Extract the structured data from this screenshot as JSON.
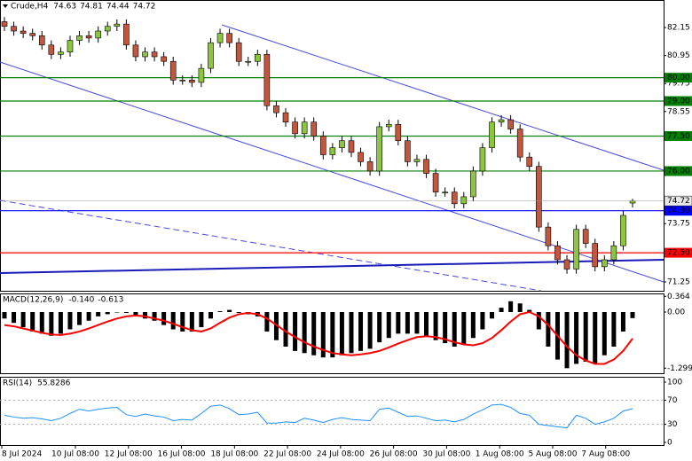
{
  "chart_data": [
    {
      "type": "candlestick",
      "title": "Crude,H4",
      "header_values": [
        74.63,
        74.81,
        74.44,
        74.72
      ],
      "up_color": "#8cc63f",
      "down_color": "#c0573e",
      "open": [
        82.4,
        82.2,
        82.0,
        81.9,
        81.8,
        81.4,
        81.0,
        81.1,
        81.6,
        81.8,
        81.7,
        82.0,
        82.2,
        82.3,
        81.4,
        80.9,
        81.1,
        80.9,
        80.7,
        79.9,
        79.9,
        79.8,
        80.4,
        81.5,
        81.9,
        81.5,
        80.7,
        80.7,
        81.0,
        78.8,
        78.5,
        78.1,
        77.6,
        78.1,
        77.5,
        76.7,
        77.0,
        77.3,
        76.8,
        76.4,
        76.0,
        77.9,
        78.0,
        77.3,
        76.4,
        76.5,
        75.9,
        75.1,
        75.1,
        74.6,
        74.9,
        76.0,
        77.0,
        78.1,
        78.2,
        77.8,
        76.6,
        76.2,
        73.6,
        72.8,
        72.2,
        71.8,
        73.5,
        72.9,
        71.9,
        72.2,
        72.8,
        74.63
      ],
      "high": [
        82.6,
        82.4,
        82.2,
        82.1,
        82.0,
        81.6,
        81.3,
        81.8,
        82.0,
        82.0,
        82.2,
        82.4,
        82.5,
        82.5,
        81.6,
        81.3,
        81.3,
        81.1,
        80.9,
        80.1,
        80.1,
        80.6,
        81.7,
        82.1,
        82.1,
        81.7,
        80.9,
        81.2,
        81.2,
        79.0,
        78.7,
        78.3,
        78.3,
        78.3,
        77.7,
        77.2,
        77.5,
        77.5,
        77.0,
        76.6,
        78.1,
        78.2,
        78.2,
        77.5,
        76.7,
        76.7,
        76.1,
        75.3,
        75.3,
        75.1,
        76.2,
        77.2,
        78.3,
        78.4,
        78.4,
        78.0,
        76.8,
        76.4,
        73.8,
        73.0,
        72.4,
        73.7,
        73.7,
        73.1,
        72.4,
        73.0,
        74.3,
        74.81
      ],
      "low": [
        82.0,
        81.8,
        81.7,
        81.6,
        81.2,
        80.8,
        80.8,
        80.9,
        81.4,
        81.5,
        81.5,
        81.8,
        82.0,
        81.2,
        80.7,
        80.7,
        80.7,
        80.5,
        79.7,
        79.7,
        79.6,
        79.6,
        80.2,
        81.3,
        81.3,
        80.5,
        80.5,
        80.5,
        78.6,
        78.3,
        77.9,
        77.4,
        77.4,
        77.3,
        76.5,
        76.5,
        76.8,
        76.6,
        76.2,
        75.8,
        75.8,
        77.7,
        77.1,
        76.2,
        76.2,
        75.7,
        74.9,
        74.9,
        74.4,
        74.4,
        74.7,
        75.8,
        76.8,
        77.9,
        77.6,
        76.4,
        76.0,
        73.4,
        72.6,
        72.0,
        71.6,
        71.6,
        72.7,
        71.7,
        71.7,
        72.0,
        72.6,
        74.44
      ],
      "close": [
        82.2,
        82.0,
        81.9,
        81.8,
        81.4,
        81.0,
        81.1,
        81.6,
        81.8,
        81.7,
        82.0,
        82.2,
        82.3,
        81.4,
        80.9,
        81.1,
        80.9,
        80.7,
        79.9,
        79.9,
        79.8,
        80.4,
        81.5,
        81.9,
        81.5,
        80.7,
        80.7,
        81.0,
        78.8,
        78.5,
        78.1,
        77.6,
        78.1,
        77.5,
        76.7,
        77.0,
        77.3,
        76.8,
        76.4,
        76.0,
        77.9,
        78.0,
        77.3,
        76.4,
        76.5,
        75.9,
        75.1,
        75.1,
        74.6,
        74.9,
        76.0,
        77.0,
        78.1,
        78.2,
        77.8,
        76.6,
        76.2,
        73.6,
        72.8,
        72.2,
        71.8,
        73.5,
        72.9,
        71.9,
        72.2,
        72.8,
        74.1,
        74.72
      ],
      "ylim": [
        70.87,
        83.33
      ],
      "yticks": [
        82.15,
        80.95,
        79.75,
        78.55,
        73.75,
        71.25
      ],
      "levels": [
        {
          "value": 80,
          "label": "80.00",
          "color": "#008000"
        },
        {
          "value": 79,
          "label": "79.00",
          "color": "#008000"
        },
        {
          "value": 77.5,
          "label": "77.50",
          "color": "#008000"
        },
        {
          "value": 76,
          "label": "76.00",
          "color": "#008000"
        },
        {
          "value": 74.3,
          "label": "74.30",
          "color": "#0000ff"
        },
        {
          "value": 72.5,
          "label": "72.50",
          "color": "#ff0000"
        }
      ],
      "last_price": 74.72
    },
    {
      "type": "macd",
      "title": "MACD(12,26,9)",
      "header_values": [
        {
          "value": -0.14,
          "label": "-0.140"
        },
        -0.613
      ],
      "color": "#000000",
      "signal_color": "#ff0000",
      "values": [
        -0.15,
        -0.25,
        -0.35,
        -0.45,
        -0.5,
        -0.55,
        -0.5,
        -0.4,
        -0.3,
        -0.2,
        -0.1,
        -0.05,
        0.0,
        -0.02,
        -0.08,
        -0.15,
        -0.2,
        -0.3,
        -0.4,
        -0.45,
        -0.45,
        -0.35,
        -0.15,
        0.02,
        0.05,
        -0.02,
        -0.05,
        -0.1,
        -0.45,
        -0.65,
        -0.8,
        -0.9,
        -0.95,
        -1.0,
        -1.05,
        -1.05,
        -1.0,
        -0.95,
        -0.9,
        -0.85,
        -0.7,
        -0.6,
        -0.5,
        -0.5,
        -0.5,
        -0.55,
        -0.65,
        -0.72,
        -0.8,
        -0.75,
        -0.6,
        -0.4,
        -0.15,
        0.1,
        0.25,
        0.2,
        0.05,
        -0.4,
        -0.8,
        -1.1,
        -1.3,
        -1.2,
        -1.15,
        -1.2,
        -1.0,
        -0.8,
        -0.45,
        -0.14
      ],
      "signal": [
        -0.3,
        -0.33,
        -0.38,
        -0.43,
        -0.48,
        -0.52,
        -0.53,
        -0.5,
        -0.45,
        -0.38,
        -0.3,
        -0.22,
        -0.15,
        -0.1,
        -0.08,
        -0.1,
        -0.15,
        -0.2,
        -0.27,
        -0.35,
        -0.42,
        -0.45,
        -0.38,
        -0.25,
        -0.13,
        -0.05,
        -0.02,
        -0.05,
        -0.15,
        -0.3,
        -0.45,
        -0.58,
        -0.7,
        -0.8,
        -0.88,
        -0.95,
        -0.98,
        -1.0,
        -0.98,
        -0.95,
        -0.9,
        -0.82,
        -0.73,
        -0.65,
        -0.58,
        -0.56,
        -0.58,
        -0.63,
        -0.7,
        -0.75,
        -0.77,
        -0.72,
        -0.6,
        -0.42,
        -0.22,
        -0.05,
        0.0,
        -0.1,
        -0.3,
        -0.55,
        -0.8,
        -1.0,
        -1.12,
        -1.2,
        -1.2,
        -1.1,
        -0.9,
        -0.613
      ],
      "ylim": [
        -1.437,
        0.431
      ],
      "yticks": [
        0.364,
        {
          "value": 0,
          "label": "0.00"
        },
        -1.299
      ]
    },
    {
      "type": "rsi",
      "title": "RSI(14)",
      "header_values": [
        55.8286
      ],
      "color": "#1e90ff",
      "values": [
        45,
        42,
        40,
        41,
        39,
        36,
        40,
        48,
        55,
        52,
        55,
        57,
        58,
        46,
        43,
        47,
        44,
        42,
        36,
        38,
        37,
        48,
        60,
        62,
        56,
        46,
        47,
        50,
        32,
        32,
        34,
        33,
        40,
        37,
        33,
        38,
        41,
        38,
        37,
        36,
        55,
        57,
        50,
        43,
        44,
        40,
        36,
        37,
        34,
        38,
        47,
        54,
        62,
        63,
        58,
        48,
        45,
        30,
        28,
        26,
        24,
        45,
        40,
        30,
        34,
        40,
        52,
        55.8286
      ],
      "ylim": [
        -4.4,
        108.8
      ],
      "yticks": [
        100,
        70,
        30,
        0
      ],
      "levels": [
        70,
        30
      ],
      "x_labels": [
        "8 Jul 2024",
        "10 Jul 08:00",
        "12 Jul 08:00",
        "16 Jul 08:00",
        "18 Jul 08:00",
        "22 Jul 08:00",
        "24 Jul 08:00",
        "26 Jul 08:00",
        "30 Jul 08:00",
        "1 Aug 08:00",
        "5 Aug 08:00",
        "7 Aug 08:00"
      ]
    }
  ]
}
